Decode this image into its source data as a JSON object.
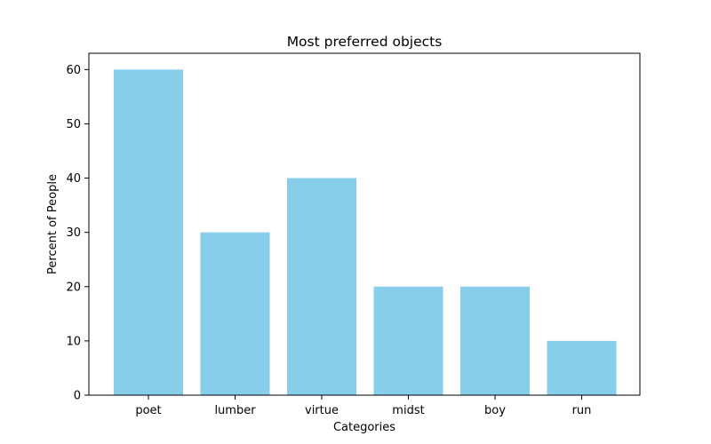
{
  "chart_data": {
    "type": "bar",
    "title": "Most preferred objects",
    "xlabel": "Categories",
    "ylabel": "Percent of People",
    "categories": [
      "poet",
      "lumber",
      "virtue",
      "midst",
      "boy",
      "run"
    ],
    "values": [
      60,
      30,
      40,
      20,
      20,
      10
    ],
    "ylim": [
      0,
      63
    ],
    "yticks": [
      0,
      10,
      20,
      30,
      40,
      50,
      60
    ],
    "bar_color": "#87CEEB",
    "grid": false,
    "legend": false
  }
}
